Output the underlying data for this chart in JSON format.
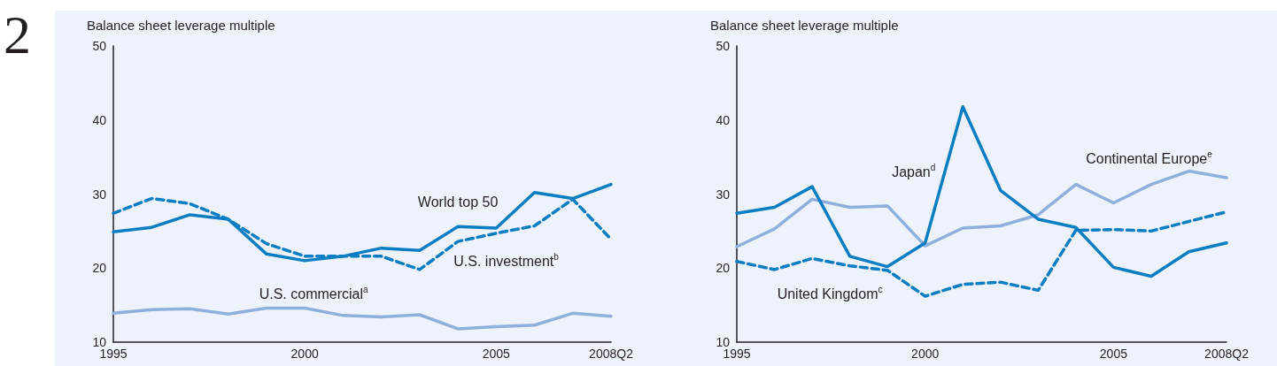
{
  "chart_data": [
    {
      "type": "line",
      "ylabel": "Balance sheet leverage multiple",
      "annotations": [
        "2"
      ],
      "categories": [
        "1995",
        null,
        null,
        null,
        null,
        "2000",
        null,
        null,
        null,
        null,
        "2005",
        null,
        null,
        "2008Q2"
      ],
      "ylim": [
        10,
        50
      ],
      "yticks": [
        10,
        20,
        30,
        40,
        50
      ],
      "grid": false,
      "legend": false,
      "marker": "none",
      "series": [
        {
          "name": "World top 50",
          "color": "#0b7dc2",
          "line_style": "solid",
          "values": [
            24.9,
            25.5,
            27.2,
            26.6,
            21.9,
            21.0,
            21.6,
            22.7,
            22.4,
            25.6,
            25.4,
            30.2,
            29.4,
            31.3
          ]
        },
        {
          "name": "U.S. investment$^{b}$",
          "color": "#0b7dc2",
          "line_style": "dashed",
          "values": [
            27.4,
            29.4,
            28.7,
            26.6,
            23.3,
            21.6,
            21.6,
            21.6,
            19.8,
            23.6,
            24.7,
            25.7,
            29.3,
            23.9
          ]
        },
        {
          "name": "U.S. commercial$^{a}$",
          "color": "#8fb0dd",
          "line_style": "solid",
          "values": [
            13.9,
            14.4,
            14.5,
            13.8,
            14.6,
            14.6,
            13.6,
            13.4,
            13.7,
            11.8,
            12.1,
            12.3,
            13.9,
            13.5
          ]
        }
      ]
    },
    {
      "type": "line",
      "ylabel": "Balance sheet leverage multiple",
      "categories": [
        "1995",
        null,
        null,
        null,
        null,
        "2000",
        null,
        null,
        null,
        null,
        "2005",
        null,
        null,
        "2008Q2"
      ],
      "ylim": [
        10,
        50
      ],
      "yticks": [
        10,
        20,
        30,
        40,
        50
      ],
      "grid": false,
      "legend": false,
      "marker": "none",
      "series": [
        {
          "name": "Japan$^{d}$",
          "color": "#0b7dc2",
          "line_style": "solid",
          "values": [
            27.4,
            28.2,
            31.0,
            21.6,
            20.2,
            23.4,
            41.8,
            30.5,
            26.6,
            25.5,
            20.1,
            18.9,
            22.2,
            23.4
          ]
        },
        {
          "name": "Continental Europe$^{e}$",
          "color": "#8fb0dd",
          "line_style": "solid",
          "values": [
            22.9,
            25.3,
            29.3,
            28.2,
            28.4,
            23.0,
            25.4,
            25.7,
            27.2,
            31.3,
            28.8,
            31.3,
            33.1,
            32.2
          ]
        },
        {
          "name": "United Kingdom$^{c}$",
          "color": "#0b7dc2",
          "line_style": "dashed",
          "values": [
            20.9,
            19.8,
            21.3,
            20.3,
            19.7,
            16.2,
            17.8,
            18.1,
            17.0,
            25.1,
            25.2,
            25.0,
            26.3,
            27.6
          ]
        }
      ]
    }
  ]
}
